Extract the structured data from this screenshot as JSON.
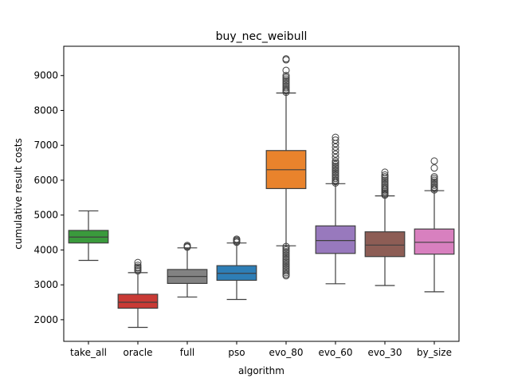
{
  "chart_data": {
    "type": "box",
    "title": "buy_nec_weibull",
    "xlabel": "algorithm",
    "ylabel": "cumulative result costs",
    "ylim": [
      1380,
      9840
    ],
    "yticks": [
      2000,
      3000,
      4000,
      5000,
      6000,
      7000,
      8000,
      9000
    ],
    "grid": false,
    "categories": [
      "take_all",
      "oracle",
      "full",
      "pso",
      "evo_80",
      "evo_60",
      "evo_30",
      "by_size"
    ],
    "colors": [
      "#3a9a3c",
      "#c93a35",
      "#828282",
      "#2e7eb6",
      "#e9832c",
      "#9879bd",
      "#8d5d55",
      "#d880bf"
    ],
    "boxes": [
      {
        "whislo": 3700,
        "q1": 4200,
        "med": 4370,
        "q3": 4560,
        "whishi": 5120,
        "fliers": []
      },
      {
        "whislo": 1780,
        "q1": 2330,
        "med": 2500,
        "q3": 2730,
        "whishi": 3350,
        "fliers": [
          3400,
          3440,
          3480,
          3510,
          3560,
          3640
        ]
      },
      {
        "whislo": 2650,
        "q1": 3040,
        "med": 3240,
        "q3": 3440,
        "whishi": 4060,
        "fliers": [
          4080,
          4100,
          4130
        ]
      },
      {
        "whislo": 2580,
        "q1": 3130,
        "med": 3330,
        "q3": 3550,
        "whishi": 4200,
        "fliers": [
          4220,
          4250,
          4280,
          4310
        ]
      },
      {
        "whislo": 4120,
        "q1": 5760,
        "med": 6300,
        "q3": 6850,
        "whishi": 8500,
        "fliers": [
          3260,
          3300,
          3350,
          3400,
          3450,
          3500,
          3550,
          3600,
          3650,
          3700,
          3750,
          3800,
          3850,
          3900,
          3950,
          4000,
          4050,
          4100,
          8520,
          8560,
          8600,
          8650,
          8700,
          8750,
          8800,
          8850,
          8900,
          8950,
          9000,
          9150,
          9450,
          9480
        ]
      },
      {
        "whislo": 3030,
        "q1": 3900,
        "med": 4270,
        "q3": 4690,
        "whishi": 5900,
        "fliers": [
          5920,
          5960,
          6000,
          6050,
          6100,
          6150,
          6200,
          6250,
          6300,
          6350,
          6400,
          6450,
          6500,
          6550,
          6650,
          6750,
          6850,
          6950,
          7050,
          7150,
          7230
        ]
      },
      {
        "whislo": 2980,
        "q1": 3810,
        "med": 4140,
        "q3": 4520,
        "whishi": 5550,
        "fliers": [
          5570,
          5600,
          5640,
          5680,
          5720,
          5760,
          5800,
          5850,
          5900,
          5950,
          6000,
          6050,
          6100,
          6150,
          6230
        ]
      },
      {
        "whislo": 2800,
        "q1": 3880,
        "med": 4220,
        "q3": 4600,
        "whishi": 5700,
        "fliers": [
          5720,
          5760,
          5800,
          5850,
          5900,
          5950,
          6000,
          6050,
          6100,
          6350,
          6550
        ]
      }
    ]
  }
}
